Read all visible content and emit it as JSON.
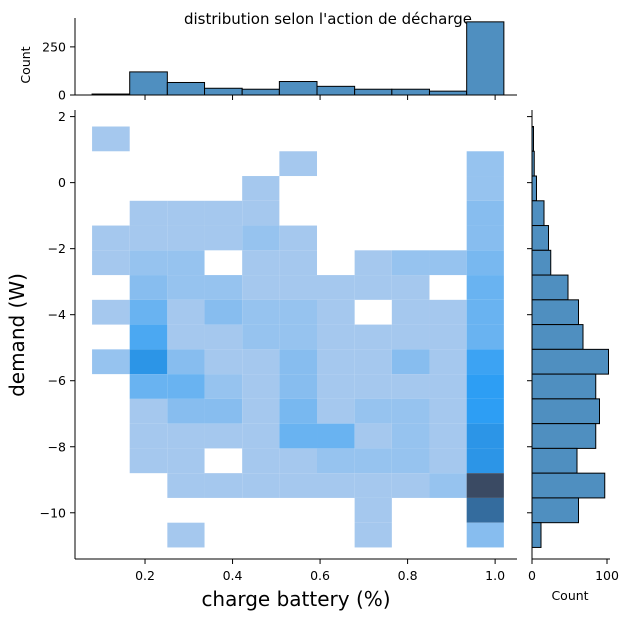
{
  "chart_data": {
    "type": "heatmap",
    "title": "distribution selon l'action de décharge",
    "xlabel": "charge battery (%)",
    "ylabel": "demand (W)",
    "xlim": [
      0.04,
      1.05
    ],
    "ylim": [
      -11.4,
      2.2
    ],
    "x_ticks": [
      0.2,
      0.4,
      0.6,
      0.8,
      1.0
    ],
    "x_tick_labels": [
      "0.2",
      "0.4",
      "0.6",
      "0.8",
      "1.0"
    ],
    "y_ticks": [
      2,
      0,
      -2,
      -4,
      -6,
      -8,
      -10
    ],
    "y_tick_labels": [
      "2",
      "0",
      "−2",
      "−4",
      "−6",
      "−8",
      "−10"
    ],
    "x_bin_edges": [
      0.079,
      0.165,
      0.251,
      0.336,
      0.422,
      0.507,
      0.593,
      0.679,
      0.764,
      0.85,
      0.935,
      1.02
    ],
    "y_bin_edges": [
      1.7,
      0.95,
      0.2,
      -0.55,
      -1.3,
      -2.05,
      -2.8,
      -3.55,
      -4.3,
      -5.05,
      -5.8,
      -6.55,
      -7.3,
      -8.05,
      -8.8,
      -9.55,
      -10.3,
      -11.05
    ],
    "heat_cells": [
      {
        "xi": 0,
        "yi": 0,
        "count": 2
      },
      {
        "xi": 5,
        "yi": 1,
        "count": 2
      },
      {
        "xi": 10,
        "yi": 1,
        "count": 3
      },
      {
        "xi": 4,
        "yi": 2,
        "count": 2
      },
      {
        "xi": 10,
        "yi": 2,
        "count": 3
      },
      {
        "xi": 1,
        "yi": 3,
        "count": 2
      },
      {
        "xi": 2,
        "yi": 3,
        "count": 2
      },
      {
        "xi": 3,
        "yi": 3,
        "count": 2
      },
      {
        "xi": 4,
        "yi": 3,
        "count": 2
      },
      {
        "xi": 10,
        "yi": 3,
        "count": 4
      },
      {
        "xi": 0,
        "yi": 4,
        "count": 2
      },
      {
        "xi": 1,
        "yi": 4,
        "count": 2
      },
      {
        "xi": 2,
        "yi": 4,
        "count": 2
      },
      {
        "xi": 3,
        "yi": 4,
        "count": 2
      },
      {
        "xi": 4,
        "yi": 4,
        "count": 3
      },
      {
        "xi": 5,
        "yi": 4,
        "count": 2
      },
      {
        "xi": 10,
        "yi": 4,
        "count": 4
      },
      {
        "xi": 0,
        "yi": 5,
        "count": 2
      },
      {
        "xi": 1,
        "yi": 5,
        "count": 3
      },
      {
        "xi": 2,
        "yi": 5,
        "count": 3
      },
      {
        "xi": 4,
        "yi": 5,
        "count": 2
      },
      {
        "xi": 5,
        "yi": 5,
        "count": 2
      },
      {
        "xi": 7,
        "yi": 5,
        "count": 2
      },
      {
        "xi": 8,
        "yi": 5,
        "count": 3
      },
      {
        "xi": 9,
        "yi": 5,
        "count": 3
      },
      {
        "xi": 10,
        "yi": 5,
        "count": 5
      },
      {
        "xi": 1,
        "yi": 6,
        "count": 4
      },
      {
        "xi": 2,
        "yi": 6,
        "count": 3
      },
      {
        "xi": 3,
        "yi": 6,
        "count": 3
      },
      {
        "xi": 4,
        "yi": 6,
        "count": 2
      },
      {
        "xi": 5,
        "yi": 6,
        "count": 2
      },
      {
        "xi": 6,
        "yi": 6,
        "count": 2
      },
      {
        "xi": 7,
        "yi": 6,
        "count": 2
      },
      {
        "xi": 8,
        "yi": 6,
        "count": 2
      },
      {
        "xi": 10,
        "yi": 6,
        "count": 6
      },
      {
        "xi": 0,
        "yi": 7,
        "count": 2
      },
      {
        "xi": 1,
        "yi": 7,
        "count": 6
      },
      {
        "xi": 2,
        "yi": 7,
        "count": 2
      },
      {
        "xi": 3,
        "yi": 7,
        "count": 4
      },
      {
        "xi": 4,
        "yi": 7,
        "count": 3
      },
      {
        "xi": 5,
        "yi": 7,
        "count": 3
      },
      {
        "xi": 6,
        "yi": 7,
        "count": 2
      },
      {
        "xi": 8,
        "yi": 7,
        "count": 2
      },
      {
        "xi": 9,
        "yi": 7,
        "count": 2
      },
      {
        "xi": 10,
        "yi": 7,
        "count": 6
      },
      {
        "xi": 1,
        "yi": 8,
        "count": 8
      },
      {
        "xi": 2,
        "yi": 8,
        "count": 2
      },
      {
        "xi": 3,
        "yi": 8,
        "count": 2
      },
      {
        "xi": 4,
        "yi": 8,
        "count": 3
      },
      {
        "xi": 5,
        "yi": 8,
        "count": 3
      },
      {
        "xi": 6,
        "yi": 8,
        "count": 2
      },
      {
        "xi": 7,
        "yi": 8,
        "count": 2
      },
      {
        "xi": 8,
        "yi": 8,
        "count": 2
      },
      {
        "xi": 9,
        "yi": 8,
        "count": 2
      },
      {
        "xi": 10,
        "yi": 8,
        "count": 6
      },
      {
        "xi": 0,
        "yi": 9,
        "count": 3
      },
      {
        "xi": 1,
        "yi": 9,
        "count": 11
      },
      {
        "xi": 2,
        "yi": 9,
        "count": 4
      },
      {
        "xi": 3,
        "yi": 9,
        "count": 2
      },
      {
        "xi": 4,
        "yi": 9,
        "count": 2
      },
      {
        "xi": 5,
        "yi": 9,
        "count": 4
      },
      {
        "xi": 6,
        "yi": 9,
        "count": 2
      },
      {
        "xi": 7,
        "yi": 9,
        "count": 2
      },
      {
        "xi": 8,
        "yi": 9,
        "count": 4
      },
      {
        "xi": 9,
        "yi": 9,
        "count": 2
      },
      {
        "xi": 10,
        "yi": 9,
        "count": 9
      },
      {
        "xi": 1,
        "yi": 10,
        "count": 6
      },
      {
        "xi": 2,
        "yi": 10,
        "count": 6
      },
      {
        "xi": 3,
        "yi": 10,
        "count": 3
      },
      {
        "xi": 4,
        "yi": 10,
        "count": 2
      },
      {
        "xi": 5,
        "yi": 10,
        "count": 4
      },
      {
        "xi": 6,
        "yi": 10,
        "count": 2
      },
      {
        "xi": 7,
        "yi": 10,
        "count": 2
      },
      {
        "xi": 8,
        "yi": 10,
        "count": 2
      },
      {
        "xi": 9,
        "yi": 10,
        "count": 2
      },
      {
        "xi": 10,
        "yi": 10,
        "count": 10
      },
      {
        "xi": 1,
        "yi": 11,
        "count": 2
      },
      {
        "xi": 2,
        "yi": 11,
        "count": 4
      },
      {
        "xi": 3,
        "yi": 11,
        "count": 4
      },
      {
        "xi": 4,
        "yi": 11,
        "count": 2
      },
      {
        "xi": 5,
        "yi": 11,
        "count": 5
      },
      {
        "xi": 6,
        "yi": 11,
        "count": 2
      },
      {
        "xi": 7,
        "yi": 11,
        "count": 3
      },
      {
        "xi": 8,
        "yi": 11,
        "count": 3
      },
      {
        "xi": 9,
        "yi": 11,
        "count": 2
      },
      {
        "xi": 10,
        "yi": 11,
        "count": 10
      },
      {
        "xi": 1,
        "yi": 12,
        "count": 2
      },
      {
        "xi": 2,
        "yi": 12,
        "count": 2
      },
      {
        "xi": 3,
        "yi": 12,
        "count": 2
      },
      {
        "xi": 4,
        "yi": 12,
        "count": 2
      },
      {
        "xi": 5,
        "yi": 12,
        "count": 6
      },
      {
        "xi": 6,
        "yi": 12,
        "count": 6
      },
      {
        "xi": 7,
        "yi": 12,
        "count": 2
      },
      {
        "xi": 8,
        "yi": 12,
        "count": 3
      },
      {
        "xi": 9,
        "yi": 12,
        "count": 2
      },
      {
        "xi": 10,
        "yi": 12,
        "count": 11
      },
      {
        "xi": 1,
        "yi": 13,
        "count": 2
      },
      {
        "xi": 2,
        "yi": 13,
        "count": 2
      },
      {
        "xi": 4,
        "yi": 13,
        "count": 2
      },
      {
        "xi": 5,
        "yi": 13,
        "count": 2
      },
      {
        "xi": 6,
        "yi": 13,
        "count": 3
      },
      {
        "xi": 7,
        "yi": 13,
        "count": 3
      },
      {
        "xi": 8,
        "yi": 13,
        "count": 3
      },
      {
        "xi": 9,
        "yi": 13,
        "count": 2
      },
      {
        "xi": 10,
        "yi": 13,
        "count": 11
      },
      {
        "xi": 2,
        "yi": 14,
        "count": 2
      },
      {
        "xi": 3,
        "yi": 14,
        "count": 2
      },
      {
        "xi": 4,
        "yi": 14,
        "count": 2
      },
      {
        "xi": 5,
        "yi": 14,
        "count": 2
      },
      {
        "xi": 6,
        "yi": 14,
        "count": 2
      },
      {
        "xi": 7,
        "yi": 14,
        "count": 2
      },
      {
        "xi": 8,
        "yi": 14,
        "count": 2
      },
      {
        "xi": 9,
        "yi": 14,
        "count": 3
      },
      {
        "xi": 10,
        "yi": 14,
        "count": 20
      },
      {
        "xi": 7,
        "yi": 15,
        "count": 2
      },
      {
        "xi": 10,
        "yi": 15,
        "count": 16
      },
      {
        "xi": 2,
        "yi": 16,
        "count": 2
      },
      {
        "xi": 7,
        "yi": 16,
        "count": 2
      },
      {
        "xi": 10,
        "yi": 16,
        "count": 4
      }
    ],
    "marginal_x": {
      "ylabel": "Count",
      "ylim": [
        0,
        400
      ],
      "y_ticks": [
        0,
        250
      ],
      "y_tick_labels": [
        "0",
        "250"
      ],
      "counts": [
        5,
        120,
        65,
        35,
        30,
        70,
        45,
        30,
        30,
        20,
        380
      ]
    },
    "marginal_y": {
      "xlabel": "Count",
      "xlim": [
        0,
        104
      ],
      "x_ticks": [
        0,
        100
      ],
      "x_tick_labels": [
        "0",
        "100"
      ],
      "counts": [
        2,
        3,
        6,
        16,
        22,
        25,
        48,
        62,
        68,
        102,
        85,
        90,
        85,
        60,
        97,
        62,
        12
      ]
    },
    "colors": {
      "bar_fill": "#4f8fc0",
      "bar_edge": "#000000",
      "heat_low": "#a5c8ee",
      "heat_mid": "#2b9df4",
      "heat_high": "#3a4a63"
    },
    "grid": false,
    "legend": "none"
  }
}
